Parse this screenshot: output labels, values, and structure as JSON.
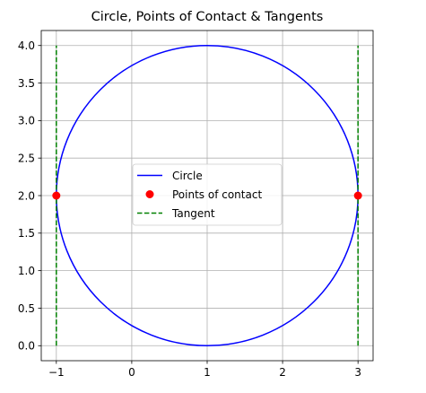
{
  "chart_data": {
    "type": "line",
    "title": "Circle, Points of Contact & Tangents",
    "xlabel": "",
    "ylabel": "",
    "xlim": [
      -1.2,
      3.2
    ],
    "ylim": [
      -0.2,
      4.2
    ],
    "xticks": [
      -1,
      0,
      1,
      2,
      3
    ],
    "xtick_labels": [
      "−1",
      "0",
      "1",
      "2",
      "3"
    ],
    "yticks": [
      0.0,
      0.5,
      1.0,
      1.5,
      2.0,
      2.5,
      3.0,
      3.5,
      4.0
    ],
    "ytick_labels": [
      "0.0",
      "0.5",
      "1.0",
      "1.5",
      "2.0",
      "2.5",
      "3.0",
      "3.5",
      "4.0"
    ],
    "grid": true,
    "legend_position": "center",
    "series": [
      {
        "name": "Circle",
        "kind": "line",
        "color": "#0000ff",
        "style": "solid",
        "center": [
          1,
          2
        ],
        "radius": 2
      },
      {
        "name": "Points of contact",
        "kind": "scatter",
        "color": "#ff0000",
        "points": [
          [
            -1,
            2
          ],
          [
            3,
            2
          ]
        ]
      },
      {
        "name": "Tangent",
        "kind": "line",
        "color": "#008000",
        "style": "dashed",
        "lines": [
          {
            "x": [
              -1,
              -1
            ],
            "y": [
              0,
              4
            ]
          },
          {
            "x": [
              3,
              3
            ],
            "y": [
              0,
              4
            ]
          }
        ]
      }
    ]
  }
}
